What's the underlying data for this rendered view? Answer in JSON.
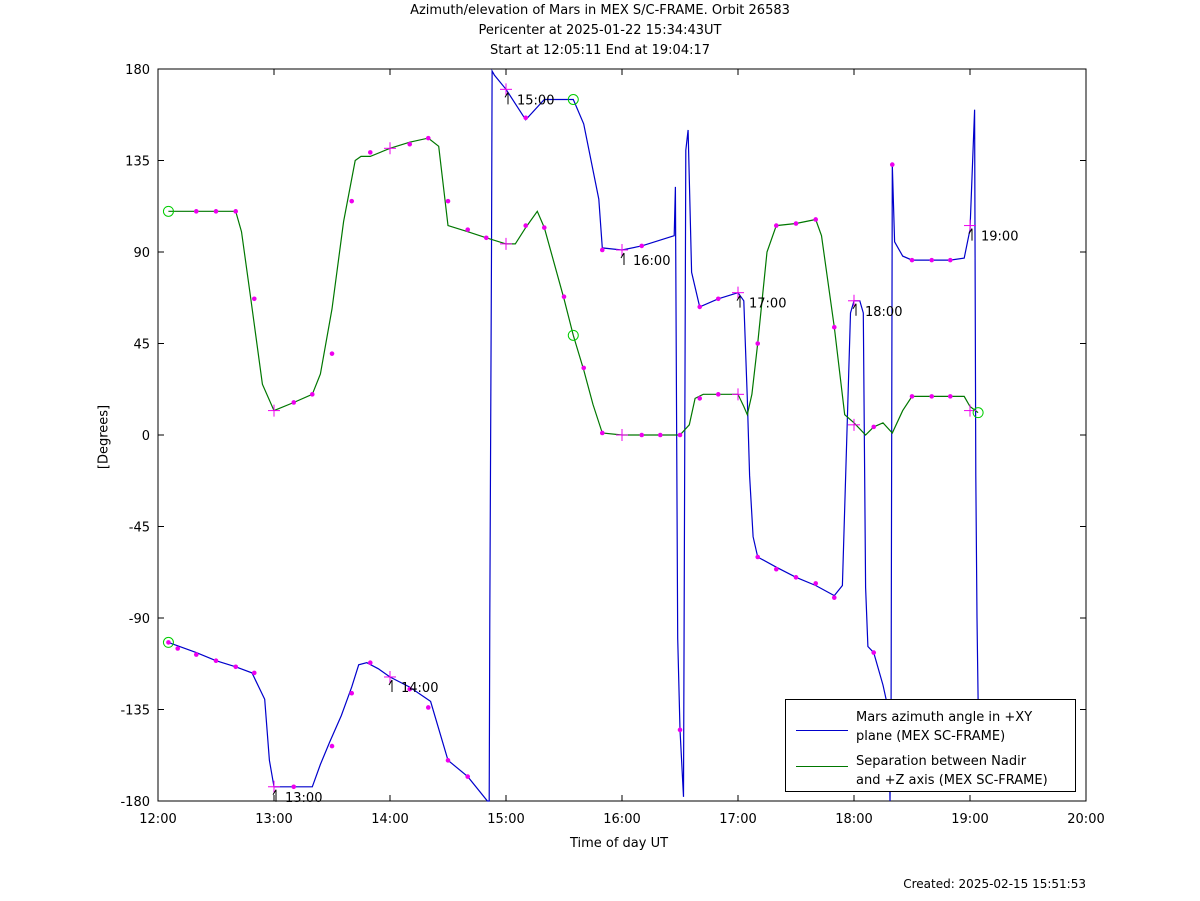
{
  "chart_data": {
    "type": "line",
    "title": "Azimuth/elevation of Mars in MEX S/C-FRAME.  Orbit 26583",
    "subtitle_lines": [
      "Pericenter at 2025-01-22 15:34:43UT",
      "Start at 12:05:11 End at 19:04:17"
    ],
    "xlabel": "Time of day UT",
    "ylabel": "[Degrees]",
    "xlim": [
      12.0,
      20.0
    ],
    "ylim": [
      -180,
      180
    ],
    "x_unit": "hours UT",
    "x_tick_labels": [
      "12:00",
      "13:00",
      "14:00",
      "15:00",
      "16:00",
      "17:00",
      "18:00",
      "19:00",
      "20:00"
    ],
    "y_tick_labels": [
      "180",
      "135",
      "90",
      "45",
      "0",
      "-45",
      "-90",
      "-135",
      "-180"
    ],
    "grid": false,
    "legend_position": "bottom-right",
    "series": [
      {
        "name_lines": [
          "Mars azimuth angle in +XY",
          "plane (MEX SC-FRAME)"
        ],
        "color": "#0000cc",
        "x": [
          12.09,
          12.33,
          12.5,
          12.67,
          12.81,
          12.92,
          12.96,
          13.0,
          13.17,
          13.33,
          13.4,
          13.48,
          13.58,
          13.67,
          13.73,
          13.8,
          13.9,
          14.0,
          14.17,
          14.35,
          14.5,
          14.67,
          14.84,
          14.855,
          14.86,
          14.875,
          14.88,
          14.9,
          15.0,
          15.17,
          15.33,
          15.58,
          15.67,
          15.8,
          15.83,
          16.0,
          16.17,
          16.45,
          16.46,
          16.48,
          16.5,
          16.53,
          16.55,
          16.57,
          16.6,
          16.67,
          16.83,
          17.0,
          17.05,
          17.08,
          17.1,
          17.13,
          17.17,
          17.33,
          17.5,
          17.67,
          17.83,
          17.9,
          17.97,
          18.0,
          18.05,
          18.08,
          18.1,
          18.12,
          18.17,
          18.25,
          18.3,
          18.31,
          18.32,
          18.33,
          18.35,
          18.42,
          18.5,
          18.67,
          18.83,
          18.95,
          19.0,
          19.04,
          19.05,
          19.06,
          19.07
        ],
        "y": [
          -102,
          -107,
          -111,
          -114,
          -117,
          -130,
          -160,
          -173,
          -173,
          -173,
          -162,
          -151,
          -138,
          -124,
          -113,
          -112,
          -115,
          -119,
          -124,
          -131,
          -160,
          -168,
          -180,
          -180,
          -90,
          90,
          179,
          177,
          170,
          155,
          165,
          165,
          153,
          116,
          92,
          91,
          93,
          98,
          122,
          -100,
          -145,
          -178,
          140,
          150,
          80,
          63,
          67,
          70,
          66,
          18,
          -20,
          -50,
          -60,
          -65,
          -70,
          -74,
          -79,
          -74,
          60,
          66,
          66,
          60,
          -75,
          -104,
          -107,
          -123,
          -136,
          -180,
          -130,
          133,
          95,
          88,
          86,
          86,
          86,
          87,
          101,
          160,
          -20,
          -90,
          -130
        ],
        "markers": [
          [
            12.17,
            -105
          ],
          [
            12.33,
            -108
          ],
          [
            12.5,
            -111
          ],
          [
            12.67,
            -114
          ],
          [
            12.83,
            -117
          ],
          [
            13.17,
            -173
          ],
          [
            13.5,
            -153
          ],
          [
            13.67,
            -127
          ],
          [
            13.83,
            -112
          ],
          [
            14.17,
            -125
          ],
          [
            14.33,
            -134
          ],
          [
            14.5,
            -160
          ],
          [
            14.67,
            -168
          ],
          [
            15.17,
            156
          ],
          [
            15.83,
            91
          ],
          [
            16.17,
            93
          ],
          [
            16.5,
            -145
          ],
          [
            16.67,
            63
          ],
          [
            16.83,
            67
          ],
          [
            17.17,
            -60
          ],
          [
            17.33,
            -66
          ],
          [
            17.5,
            -70
          ],
          [
            17.67,
            -73
          ],
          [
            17.83,
            -80
          ],
          [
            18.17,
            -107
          ],
          [
            18.33,
            133
          ],
          [
            18.5,
            86
          ],
          [
            18.67,
            86
          ],
          [
            18.83,
            86
          ]
        ],
        "crosses": [
          [
            13.0,
            -173
          ],
          [
            14.0,
            -119
          ],
          [
            15.0,
            170
          ],
          [
            16.0,
            91
          ],
          [
            17.0,
            70
          ],
          [
            18.0,
            66
          ],
          [
            19.0,
            103
          ]
        ],
        "circles": [
          [
            15.58,
            165
          ]
        ]
      },
      {
        "name_lines": [
          "Separation between Nadir",
          "and +Z axis (MEX SC-FRAME)"
        ],
        "color": "#007700",
        "x": [
          12.09,
          12.33,
          12.5,
          12.67,
          12.72,
          12.8,
          12.9,
          13.0,
          13.17,
          13.33,
          13.4,
          13.5,
          13.6,
          13.7,
          13.75,
          13.83,
          14.0,
          14.17,
          14.33,
          14.42,
          14.5,
          14.67,
          14.83,
          15.0,
          15.08,
          15.17,
          15.27,
          15.33,
          15.5,
          15.58,
          15.67,
          15.75,
          15.83,
          16.0,
          16.17,
          16.33,
          16.5,
          16.58,
          16.63,
          16.7,
          16.83,
          17.0,
          17.05,
          17.08,
          17.12,
          17.17,
          17.25,
          17.33,
          17.5,
          17.67,
          17.72,
          17.83,
          17.92,
          18.0,
          18.1,
          18.17,
          18.25,
          18.33,
          18.42,
          18.5,
          18.67,
          18.83,
          18.95,
          19.0,
          19.07
        ],
        "y": [
          110,
          110,
          110,
          110,
          100,
          67,
          25,
          12,
          16,
          20,
          30,
          62,
          105,
          135,
          137,
          137,
          141,
          144,
          146,
          142,
          103,
          100,
          97,
          94,
          94,
          102,
          110,
          102,
          67,
          49,
          32,
          15,
          1,
          0,
          0,
          0,
          0,
          5,
          18,
          20,
          20,
          20,
          14,
          10,
          20,
          45,
          90,
          103,
          104,
          106,
          98,
          53,
          10,
          6,
          0,
          4,
          6,
          1,
          12,
          19,
          19,
          19,
          19,
          14,
          11
        ],
        "markers": [
          [
            12.33,
            110
          ],
          [
            12.5,
            110
          ],
          [
            12.67,
            110
          ],
          [
            12.83,
            67
          ],
          [
            13.17,
            16
          ],
          [
            13.33,
            20
          ],
          [
            13.5,
            40
          ],
          [
            13.67,
            115
          ],
          [
            13.83,
            139
          ],
          [
            14.17,
            143
          ],
          [
            14.33,
            146
          ],
          [
            14.5,
            115
          ],
          [
            14.67,
            101
          ],
          [
            14.83,
            97
          ],
          [
            15.17,
            103
          ],
          [
            15.33,
            102
          ],
          [
            15.5,
            68
          ],
          [
            15.67,
            33
          ],
          [
            15.83,
            1
          ],
          [
            16.17,
            0
          ],
          [
            16.33,
            0
          ],
          [
            16.5,
            0
          ],
          [
            16.67,
            18
          ],
          [
            16.83,
            20
          ],
          [
            17.17,
            45
          ],
          [
            17.33,
            103
          ],
          [
            17.5,
            104
          ],
          [
            17.67,
            106
          ],
          [
            17.83,
            53
          ],
          [
            18.17,
            4
          ],
          [
            18.5,
            19
          ],
          [
            18.67,
            19
          ],
          [
            18.83,
            19
          ]
        ],
        "crosses": [
          [
            13.0,
            12
          ],
          [
            14.0,
            141
          ],
          [
            15.0,
            94
          ],
          [
            16.0,
            0
          ],
          [
            17.0,
            20
          ],
          [
            18.0,
            5
          ],
          [
            19.0,
            12
          ]
        ],
        "circles": [
          [
            12.09,
            110
          ],
          [
            15.58,
            49
          ],
          [
            19.07,
            11
          ]
        ]
      }
    ],
    "start_marker": [
      12.09,
      -102
    ],
    "annotations": [
      {
        "text": "13:00",
        "x": 13.0,
        "y": -173
      },
      {
        "text": "14:00",
        "x": 14.0,
        "y": -119
      },
      {
        "text": "15:00",
        "x": 15.0,
        "y": 170
      },
      {
        "text": "16:00",
        "x": 16.0,
        "y": 91
      },
      {
        "text": "17:00",
        "x": 17.0,
        "y": 70
      },
      {
        "text": "18:00",
        "x": 18.0,
        "y": 66
      },
      {
        "text": "19:00",
        "x": 19.0,
        "y": 103
      }
    ]
  },
  "footer": "Created: 2025-02-15 15:51:53"
}
